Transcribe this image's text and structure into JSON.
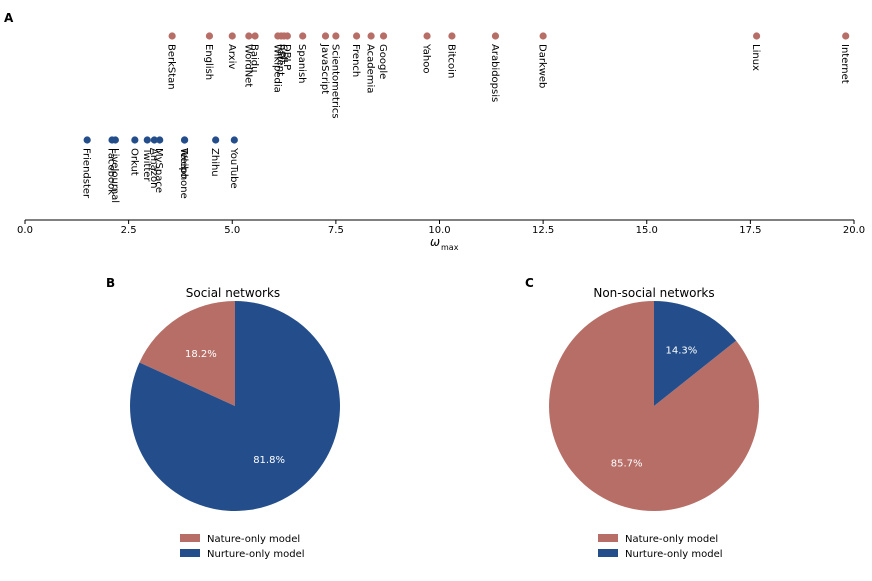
{
  "colors": {
    "nature": "#b76e67",
    "nurture": "#244e8b"
  },
  "panels": {
    "a": "A",
    "b": "B",
    "c": "C"
  },
  "chart_data": [
    {
      "type": "scatter",
      "xlabel": "ω",
      "xlabel_sub": "max",
      "xlim": [
        0,
        20
      ],
      "xticks": [
        0.0,
        2.5,
        5.0,
        7.5,
        10.0,
        12.5,
        15.0,
        17.5,
        20.0
      ],
      "xtick_labels": [
        "0.0",
        "2.5",
        "5.0",
        "7.5",
        "10.0",
        "12.5",
        "15.0",
        "17.5",
        "20.0"
      ],
      "series": [
        {
          "name": "Non-social networks",
          "color": "nature",
          "points": [
            {
              "label": "BerkStan",
              "x": 3.55
            },
            {
              "label": "English",
              "x": 4.45
            },
            {
              "label": "Arxiv",
              "x": 5.0
            },
            {
              "label": "WordNet",
              "x": 5.4
            },
            {
              "label": "Baidu",
              "x": 5.55
            },
            {
              "label": "Wikipedia",
              "x": 6.1
            },
            {
              "label": "Patent",
              "x": 6.18
            },
            {
              "label": "Cell",
              "x": 6.25
            },
            {
              "label": "DBLP",
              "x": 6.33
            },
            {
              "label": "Spanish",
              "x": 6.7
            },
            {
              "label": "JavaScript",
              "x": 7.25
            },
            {
              "label": "Scientometrics",
              "x": 7.5
            },
            {
              "label": "French",
              "x": 8.0
            },
            {
              "label": "Academia",
              "x": 8.35
            },
            {
              "label": "Google",
              "x": 8.65
            },
            {
              "label": "Yahoo",
              "x": 9.7
            },
            {
              "label": "Bitcoin",
              "x": 10.3
            },
            {
              "label": "Arabidopsis",
              "x": 11.35
            },
            {
              "label": "Darkweb",
              "x": 12.5
            },
            {
              "label": "Linux",
              "x": 17.65
            },
            {
              "label": "Internet",
              "x": 19.8
            }
          ]
        },
        {
          "name": "Social networks",
          "color": "nurture",
          "points": [
            {
              "label": "Friendster",
              "x": 1.5
            },
            {
              "label": "Facebook",
              "x": 2.1
            },
            {
              "label": "LiveJournal",
              "x": 2.18
            },
            {
              "label": "Orkut",
              "x": 2.65
            },
            {
              "label": "Twitter",
              "x": 2.95
            },
            {
              "label": "Amazon",
              "x": 3.12
            },
            {
              "label": "MySpace",
              "x": 3.25
            },
            {
              "label": "Weibo",
              "x": 3.85
            },
            {
              "label": "Telephone",
              "x": 3.85
            },
            {
              "label": "Zhihu",
              "x": 4.6
            },
            {
              "label": "YouTube",
              "x": 5.05
            }
          ]
        }
      ]
    },
    {
      "type": "pie",
      "title": "Social networks",
      "slices": [
        {
          "label": "Nature-only model",
          "value": 18.2,
          "pct_label": "18.2%",
          "color": "nature"
        },
        {
          "label": "Nurture-only model",
          "value": 81.8,
          "pct_label": "81.8%",
          "color": "nurture"
        }
      ],
      "legend": [
        "Nature-only model",
        "Nurture-only model"
      ]
    },
    {
      "type": "pie",
      "title": "Non-social networks",
      "slices": [
        {
          "label": "Nature-only model",
          "value": 85.7,
          "pct_label": "85.7%",
          "color": "nature"
        },
        {
          "label": "Nurture-only model",
          "value": 14.3,
          "pct_label": "14.3%",
          "color": "nurture"
        }
      ],
      "legend": [
        "Nature-only model",
        "Nurture-only model"
      ]
    }
  ]
}
